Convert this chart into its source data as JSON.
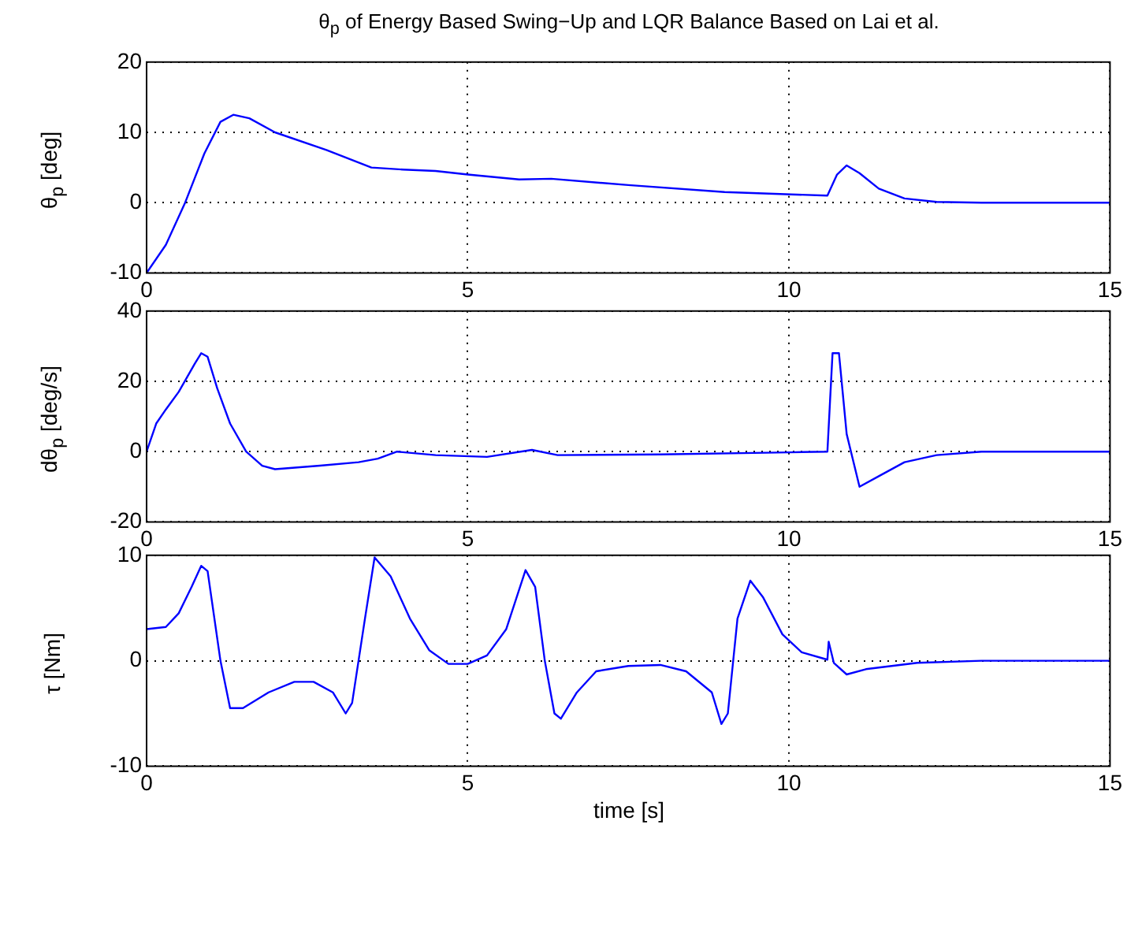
{
  "chart_data": [
    {
      "type": "line",
      "title": "θ$_{p}$ of Energy Based Swing−Up and LQR Balance Based on Lai et al.",
      "ylabel": "θ$_{p}$ [deg]",
      "xlim": [
        0,
        15
      ],
      "xticks": [
        0,
        5,
        10,
        15
      ],
      "ylim": [
        -10,
        20
      ],
      "yticks": [
        -10,
        0,
        10,
        20
      ],
      "grid": true,
      "series": [
        {
          "color": "#0000ff",
          "x": [
            0,
            0.3,
            0.6,
            0.9,
            1.15,
            1.35,
            1.6,
            2.0,
            2.8,
            3.5,
            4.0,
            4.5,
            5.0,
            5.8,
            6.3,
            7.5,
            9.0,
            10.6,
            10.75,
            10.9,
            11.1,
            11.4,
            11.8,
            12.3,
            13,
            15
          ],
          "values": [
            -10,
            -6,
            0,
            7,
            11.5,
            12.5,
            12,
            10,
            7.5,
            5,
            4.7,
            4.5,
            4,
            3.3,
            3.4,
            2.5,
            1.5,
            1,
            4,
            5.3,
            4.2,
            2,
            0.6,
            0.1,
            0,
            0
          ]
        }
      ]
    },
    {
      "type": "line",
      "ylabel": "dθ$_{p}$ [deg/s]",
      "xlim": [
        0,
        15
      ],
      "xticks": [
        0,
        5,
        10,
        15
      ],
      "ylim": [
        -20,
        40
      ],
      "yticks": [
        -20,
        0,
        20,
        40
      ],
      "grid": true,
      "series": [
        {
          "color": "#0000ff",
          "x": [
            0,
            0.15,
            0.3,
            0.5,
            0.75,
            0.85,
            0.95,
            1.1,
            1.3,
            1.55,
            1.8,
            2.0,
            2.7,
            3.3,
            3.6,
            3.9,
            4.5,
            5.3,
            6.0,
            6.4,
            8.0,
            10.0,
            10.6,
            10.68,
            10.78,
            10.9,
            11.1,
            11.4,
            11.8,
            12.3,
            13,
            15
          ],
          "values": [
            0,
            8,
            12,
            17,
            25,
            28,
            27,
            18,
            8,
            0,
            -4,
            -5,
            -4,
            -3,
            -2,
            0,
            -1,
            -1.5,
            0.5,
            -1,
            -0.8,
            -0.2,
            0,
            28,
            28,
            5,
            -10,
            -7,
            -3,
            -1,
            0,
            0
          ]
        }
      ]
    },
    {
      "type": "line",
      "ylabel": "τ [Nm]",
      "xlabel": "time [s]",
      "xlim": [
        0,
        15
      ],
      "xticks": [
        0,
        5,
        10,
        15
      ],
      "ylim": [
        -10,
        10
      ],
      "yticks": [
        -10,
        0,
        10
      ],
      "grid": true,
      "series": [
        {
          "color": "#0000ff",
          "x": [
            0,
            0.3,
            0.5,
            0.7,
            0.85,
            0.95,
            1.15,
            1.3,
            1.5,
            1.9,
            2.3,
            2.6,
            2.9,
            3.1,
            3.2,
            3.4,
            3.55,
            3.8,
            4.1,
            4.4,
            4.7,
            5.0,
            5.3,
            5.6,
            5.9,
            6.05,
            6.2,
            6.35,
            6.45,
            6.7,
            7.0,
            7.5,
            8.0,
            8.4,
            8.8,
            8.95,
            9.05,
            9.2,
            9.4,
            9.6,
            9.9,
            10.2,
            10.6,
            10.62,
            10.7,
            10.9,
            11.2,
            12,
            13,
            15
          ],
          "values": [
            3,
            3.2,
            4.5,
            7,
            9,
            8.5,
            0,
            -4.5,
            -4.5,
            -3,
            -2,
            -2,
            -3,
            -5,
            -4,
            4,
            9.8,
            8,
            4,
            1,
            -0.3,
            -0.3,
            0.5,
            3,
            8.6,
            7,
            0,
            -5,
            -5.5,
            -3,
            -1,
            -0.5,
            -0.4,
            -1,
            -3,
            -6,
            -5,
            4,
            7.6,
            6,
            2.5,
            0.8,
            0.1,
            1.8,
            -0.2,
            -1.3,
            -0.8,
            -0.2,
            0,
            0
          ]
        }
      ]
    }
  ]
}
